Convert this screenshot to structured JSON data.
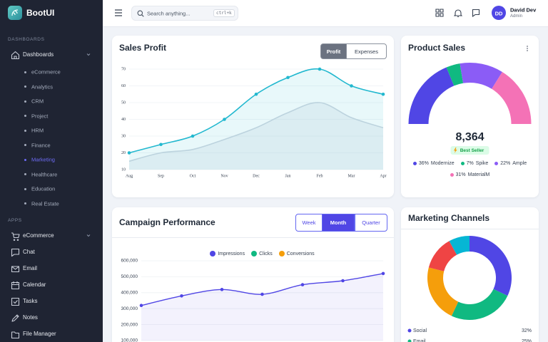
{
  "sidebar": {
    "brand": "BootUI",
    "dashboards_title": "DASHBOARDS",
    "dashboards_label": "Dashboards",
    "dashboards_items": [
      "eCommerce",
      "Analytics",
      "CRM",
      "Project",
      "HRM",
      "Finance",
      "Marketing",
      "Healthcare",
      "Education",
      "Real Estate"
    ],
    "active_index": 6,
    "apps_title": "APPS",
    "apps_items": [
      "eCommerce",
      "Chat",
      "Email",
      "Calendar",
      "Tasks",
      "Notes",
      "File Manager"
    ]
  },
  "topbar": {
    "search_placeholder": "Search anything...",
    "shortcut": "ctrl+k",
    "user_initials": "DD",
    "user_name": "David Dev",
    "user_role": "Admin"
  },
  "chart_data": [
    {
      "type": "line",
      "title": "Sales Profit",
      "active_button": 0,
      "categories": [
        "Aug",
        "Sep",
        "Oct",
        "Nov",
        "Dec",
        "Jan",
        "Feb",
        "Mar",
        "Apr"
      ],
      "series": [
        {
          "name": "Profit",
          "color": "#22b8cf",
          "markers": true,
          "values": [
            20,
            25,
            30,
            40,
            55,
            65,
            70,
            60,
            55
          ]
        },
        {
          "name": "Expenses",
          "color": "#cfd6e0",
          "values": [
            15,
            20,
            22,
            28,
            35,
            44,
            50,
            41,
            35
          ]
        }
      ],
      "ylim": [
        10,
        70
      ],
      "yticks": [
        10,
        20,
        30,
        40,
        50,
        60,
        70
      ],
      "grid": true
    },
    {
      "type": "half-donut",
      "title": "Product Sales",
      "total": {
        "value": 8364,
        "label": "8,364"
      },
      "badge": "Best Seller",
      "categories": [
        "Modernize",
        "Spike",
        "Ample",
        "MaterialM"
      ],
      "values": [
        36,
        7,
        22,
        31
      ],
      "value_labels": [
        "36%",
        "7%",
        "22%",
        "31%"
      ],
      "colors": [
        "#5046e5",
        "#10b981",
        "#8b5cf6",
        "#f472b6"
      ]
    },
    {
      "type": "line",
      "title": "Campaign Performance",
      "buttons": [
        "Week",
        "Month",
        "Quarter"
      ],
      "active_button": 1,
      "series": [
        {
          "name": "Impressions",
          "color": "#5046e5",
          "markers": true,
          "values": [
            320000,
            380000,
            420000,
            390000,
            450000,
            475000,
            520000
          ]
        },
        {
          "name": "Clicks",
          "color": "#10b981",
          "values": [
            null,
            null,
            null,
            null,
            null,
            null,
            null
          ]
        },
        {
          "name": "Conversions",
          "color": "#f59e0b",
          "values": [
            null,
            null,
            null,
            null,
            null,
            null,
            null
          ]
        }
      ],
      "ylim": [
        100000,
        600000
      ],
      "yticks": [
        {
          "value": 100000,
          "label": "100,000"
        },
        {
          "value": 200000,
          "label": "200,000"
        },
        {
          "value": 300000,
          "label": "300,000"
        },
        {
          "value": 400000,
          "label": "400,000"
        },
        {
          "value": 500000,
          "label": "500,000"
        },
        {
          "value": 600000,
          "label": "600,000"
        }
      ],
      "grid": true,
      "legend": "top"
    },
    {
      "type": "donut",
      "title": "Marketing Channels",
      "categories": [
        "Social",
        "Email",
        null,
        null,
        null
      ],
      "values": [
        32,
        25,
        22,
        13,
        8
      ],
      "value_labels": [
        "32%",
        "25%",
        null,
        null,
        null
      ],
      "colors": [
        "#5046e5",
        "#10b981",
        "#f59e0b",
        "#ef4444",
        "#06b6d4"
      ]
    }
  ]
}
